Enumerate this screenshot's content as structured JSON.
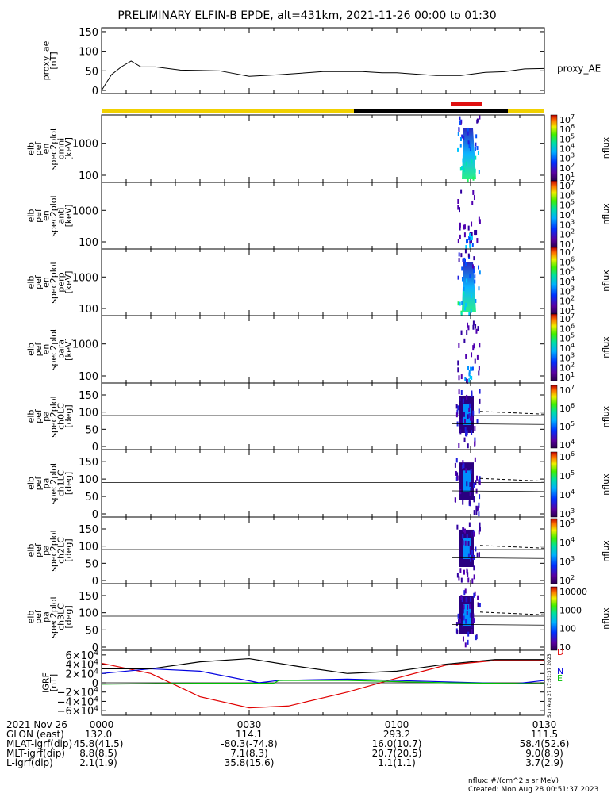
{
  "title": "PRELIMINARY ELFIN-B EPDE, alt=431km, 2021-11-26 00:00 to 01:30",
  "colors": {
    "bar_yellow": "#f0d000",
    "bar_black": "#000000",
    "bar_red": "#e01010",
    "ae_line": "#000000",
    "comp_D": "#e00000",
    "comp_N": "#0000e0",
    "comp_E": "#00c000",
    "comp_total": "#000000"
  },
  "chart_data": [
    {
      "type": "line",
      "name": "proxy_ae",
      "ylabel": [
        "proxy_ae",
        "[nT]"
      ],
      "yticks": [
        "150",
        "100",
        "50",
        "0"
      ],
      "ylim": [
        0,
        160
      ],
      "legend": "proxy_AE",
      "x_minutes": [
        0,
        2,
        4,
        6,
        8,
        11,
        16,
        24,
        30,
        36,
        45,
        53,
        57,
        60,
        68,
        73,
        78,
        82,
        86,
        90
      ],
      "values": [
        0,
        40,
        60,
        75,
        60,
        60,
        52,
        50,
        36,
        40,
        48,
        48,
        45,
        45,
        38,
        38,
        46,
        48,
        55,
        56
      ]
    },
    {
      "type": "heatmap",
      "name": "spec2plot omni",
      "ylabel": [
        "elb",
        "pef",
        "en",
        "spec2plot",
        "omni",
        "[keV]"
      ],
      "yticks": [
        "1000",
        "100"
      ],
      "ylog": true,
      "colorbar": {
        "label": "nflux",
        "ticks": [
          "10",
          "10",
          "10",
          "10",
          "10",
          "10",
          "10"
        ],
        "exponents": [
          "7",
          "6",
          "5",
          "4",
          "3",
          "2",
          "1"
        ]
      }
    },
    {
      "type": "heatmap",
      "name": "spec2plot anti",
      "ylabel": [
        "elb",
        "pef",
        "en",
        "spec2plot",
        "anti",
        "[keV]"
      ],
      "yticks": [
        "1000",
        "100"
      ],
      "ylog": true,
      "colorbar": {
        "label": "nflux",
        "ticks": [
          "10",
          "10",
          "10",
          "10",
          "10",
          "10",
          "10"
        ],
        "exponents": [
          "7",
          "6",
          "5",
          "4",
          "3",
          "2",
          "1"
        ]
      }
    },
    {
      "type": "heatmap",
      "name": "spec2plot perp",
      "ylabel": [
        "elb",
        "pef",
        "en",
        "spec2plot",
        "perp",
        "[keV]"
      ],
      "yticks": [
        "1000",
        "100"
      ],
      "ylog": true,
      "colorbar": {
        "label": "nflux",
        "ticks": [
          "10",
          "10",
          "10",
          "10",
          "10",
          "10",
          "10"
        ],
        "exponents": [
          "7",
          "6",
          "5",
          "4",
          "3",
          "2",
          "1"
        ]
      }
    },
    {
      "type": "heatmap",
      "name": "spec2plot para",
      "ylabel": [
        "elb",
        "pef",
        "en",
        "spec2plot",
        "para",
        "[keV]"
      ],
      "yticks": [
        "1000",
        "100"
      ],
      "ylog": true,
      "colorbar": {
        "label": "nflux",
        "ticks": [
          "10",
          "10",
          "10",
          "10",
          "10",
          "10",
          "10"
        ],
        "exponents": [
          "7",
          "6",
          "5",
          "4",
          "3",
          "2",
          "1"
        ]
      }
    },
    {
      "type": "heatmap",
      "name": "spec2plot ch0LC",
      "ylabel": [
        "elb",
        "pef",
        "pa",
        "spec2plot",
        "ch0LC",
        "[deg]"
      ],
      "yticks": [
        "150",
        "100",
        "50",
        "0"
      ],
      "ylim": [
        0,
        180
      ],
      "colorbar": {
        "label": "nflux",
        "ticks": [
          "10",
          "10",
          "10",
          "10"
        ],
        "exponents": [
          "7",
          "6",
          "5",
          "4"
        ]
      }
    },
    {
      "type": "heatmap",
      "name": "spec2plot ch1LC",
      "ylabel": [
        "elb",
        "pef",
        "pa",
        "spec2plot",
        "ch1LC",
        "[deg]"
      ],
      "yticks": [
        "150",
        "100",
        "50",
        "0"
      ],
      "ylim": [
        0,
        180
      ],
      "colorbar": {
        "label": "nflux",
        "ticks": [
          "10",
          "10",
          "10",
          "10"
        ],
        "exponents": [
          "6",
          "5",
          "4",
          "3"
        ]
      }
    },
    {
      "type": "heatmap",
      "name": "spec2plot ch2LC",
      "ylabel": [
        "elb",
        "pef",
        "pa",
        "spec2plot",
        "ch2LC",
        "[deg]"
      ],
      "yticks": [
        "150",
        "100",
        "50",
        "0"
      ],
      "ylim": [
        0,
        180
      ],
      "colorbar": {
        "label": "nflux",
        "ticks": [
          "10",
          "10",
          "10",
          "10"
        ],
        "exponents": [
          "5",
          "4",
          "3",
          "2"
        ]
      }
    },
    {
      "type": "heatmap",
      "name": "spec2plot ch3LC",
      "ylabel": [
        "elb",
        "pef",
        "pa",
        "spec2plot",
        "ch3LC",
        "[deg]"
      ],
      "yticks": [
        "150",
        "100",
        "50",
        "0"
      ],
      "ylim": [
        0,
        180
      ],
      "colorbar": {
        "label": "nflux",
        "ticks": [
          "10000",
          "1000",
          "100",
          "10"
        ]
      }
    },
    {
      "type": "line",
      "name": "IGRF",
      "ylabel": [
        "IGRF",
        "[nT]"
      ],
      "yticks": [
        {
          "m": "6",
          "e": "4"
        },
        {
          "m": "4",
          "e": "4"
        },
        {
          "m": "2",
          "e": "4"
        },
        {
          "m": "0",
          "e": ""
        },
        {
          "m": "−2",
          "e": "4"
        },
        {
          "m": "−4",
          "e": "4"
        },
        {
          "m": "−6",
          "e": "4"
        }
      ],
      "ylim": [
        -60000,
        60000
      ],
      "series": [
        {
          "name": "D",
          "x_minutes": [
            0,
            10,
            20,
            30,
            38,
            50,
            60,
            70,
            80,
            90
          ],
          "values": [
            42000,
            20000,
            -30000,
            -54000,
            -50000,
            -20000,
            10000,
            38000,
            48000,
            48000
          ]
        },
        {
          "name": "N",
          "x_minutes": [
            0,
            10,
            20,
            32,
            36,
            50,
            70,
            84,
            90
          ],
          "values": [
            20000,
            30000,
            25000,
            0,
            5000,
            8000,
            2000,
            -2000,
            5000
          ]
        },
        {
          "name": "E",
          "x_minutes": [
            0,
            20,
            35,
            36,
            50,
            70,
            90
          ],
          "values": [
            -3000,
            -1000,
            -1000,
            5000,
            5000,
            0,
            -2000
          ]
        },
        {
          "name": "total",
          "x_minutes": [
            0,
            10,
            20,
            30,
            40,
            50,
            60,
            70,
            80,
            90
          ],
          "values": [
            30000,
            30000,
            45000,
            52000,
            35000,
            20000,
            25000,
            40000,
            50000,
            50000
          ]
        }
      ]
    }
  ],
  "x_axis": {
    "ticks": [
      {
        "label": "0000",
        "minutes": 0
      },
      {
        "label": "0030",
        "minutes": 30
      },
      {
        "label": "0100",
        "minutes": 60
      },
      {
        "label": "0130",
        "minutes": 90
      }
    ],
    "rows": [
      {
        "label": "2021 Nov 26",
        "values": [
          "",
          "",
          "",
          ""
        ]
      },
      {
        "label": "GLON (east)",
        "values": [
          "132.0",
          "114.1",
          "293.2",
          "111.5"
        ]
      },
      {
        "label": "MLAT-igrf(dip)",
        "values": [
          "45.8(41.5)",
          "-80.3(-74.8)",
          "16.0(10.7)",
          "58.4(52.6)"
        ]
      },
      {
        "label": "MLT-igrf(dip)",
        "values": [
          "8.8(8.5)",
          "7.1(8.3)",
          "20.7(20.5)",
          "9.0(8.9)"
        ]
      },
      {
        "label": "L-igrf(dip)",
        "values": [
          "2.1(1.9)",
          "35.8(15.6)",
          "1.1(1.1)",
          "3.7(2.9)"
        ]
      }
    ]
  },
  "footer": {
    "units": "nflux: #/(cm^2 s sr MeV)",
    "created": "Created: Mon Aug 28 00:51:37 2023",
    "side_stamp": "Sun Aug 27 17:51:37 2023"
  }
}
